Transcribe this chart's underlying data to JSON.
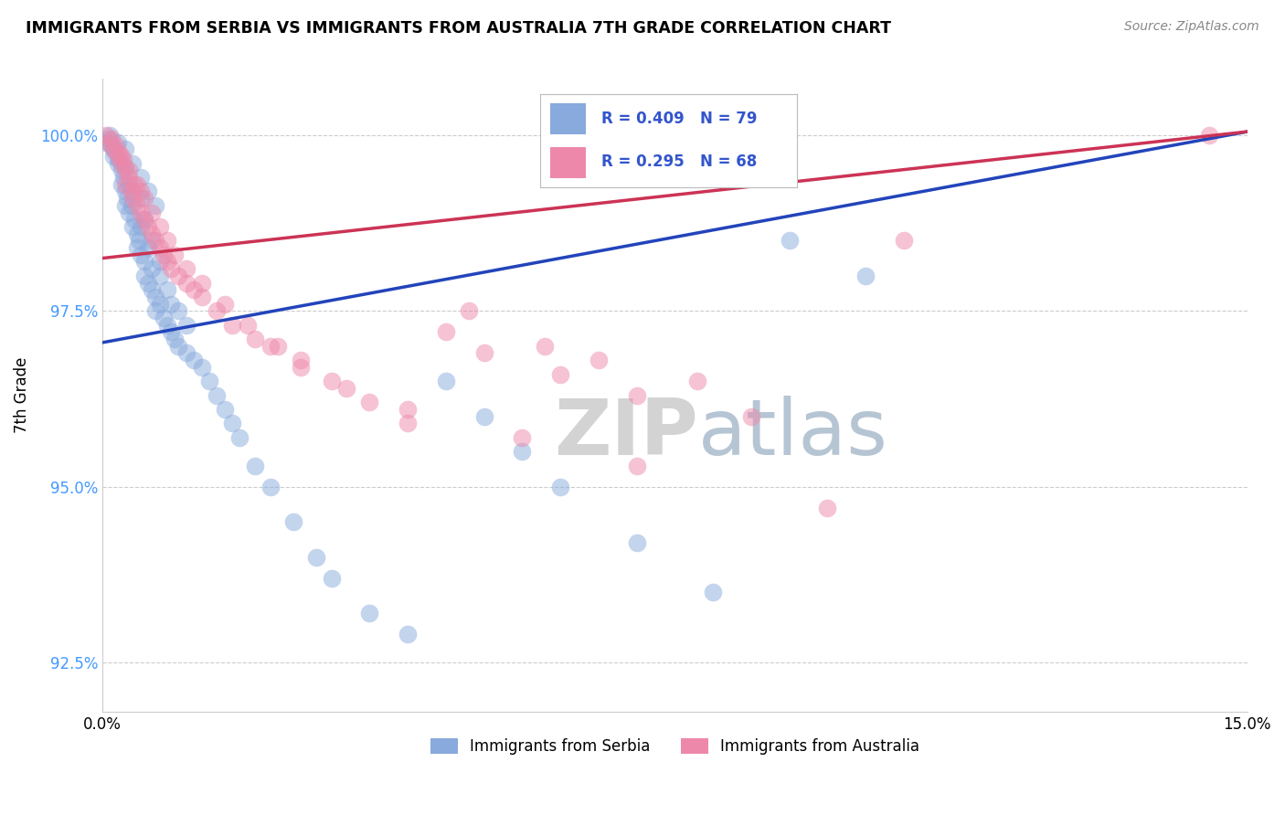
{
  "title": "IMMIGRANTS FROM SERBIA VS IMMIGRANTS FROM AUSTRALIA 7TH GRADE CORRELATION CHART",
  "source": "Source: ZipAtlas.com",
  "ylabel": "7th Grade",
  "legend_label_blue": "Immigrants from Serbia",
  "legend_label_pink": "Immigrants from Australia",
  "r_blue": 0.409,
  "n_blue": 79,
  "r_pink": 0.295,
  "n_pink": 68,
  "color_blue": "#88AADD",
  "color_pink": "#EE88AA",
  "line_color_blue": "#2244BB",
  "line_color_pink": "#CC3355",
  "xmin": 0.0,
  "xmax": 15.0,
  "ymin": 91.8,
  "ymax": 100.8,
  "y_ticks": [
    92.5,
    95.0,
    97.5,
    100.0
  ],
  "y_tick_labels": [
    "92.5%",
    "95.0%",
    "97.5%",
    "100.0%"
  ],
  "watermark_zip": "ZIP",
  "watermark_atlas": "atlas",
  "watermark_color_zip": "#CCCCCC",
  "watermark_color_atlas": "#AABBCC",
  "blue_line_x0": 0.0,
  "blue_line_y0": 97.05,
  "blue_line_x1": 15.0,
  "blue_line_y1": 100.05,
  "pink_line_x0": 0.0,
  "pink_line_y0": 98.25,
  "pink_line_x1": 15.0,
  "pink_line_y1": 100.05,
  "blue_scatter_x": [
    0.05,
    0.08,
    0.1,
    0.12,
    0.15,
    0.15,
    0.18,
    0.2,
    0.2,
    0.22,
    0.25,
    0.25,
    0.28,
    0.3,
    0.3,
    0.3,
    0.32,
    0.35,
    0.35,
    0.38,
    0.4,
    0.4,
    0.42,
    0.45,
    0.45,
    0.48,
    0.5,
    0.5,
    0.5,
    0.55,
    0.55,
    0.6,
    0.6,
    0.65,
    0.65,
    0.7,
    0.7,
    0.75,
    0.75,
    0.8,
    0.85,
    0.85,
    0.9,
    0.9,
    0.95,
    1.0,
    1.0,
    1.1,
    1.1,
    1.2,
    1.3,
    1.4,
    1.5,
    1.6,
    1.7,
    1.8,
    2.0,
    2.2,
    2.5,
    2.8,
    3.0,
    3.5,
    4.0,
    4.5,
    5.0,
    5.5,
    6.0,
    7.0,
    8.0,
    9.0,
    10.0,
    0.3,
    0.4,
    0.5,
    0.6,
    0.7,
    0.55,
    0.65,
    0.75
  ],
  "blue_scatter_y": [
    99.9,
    99.95,
    100.0,
    99.85,
    99.8,
    99.7,
    99.75,
    99.9,
    99.6,
    99.65,
    99.5,
    99.3,
    99.4,
    99.55,
    99.2,
    99.0,
    99.1,
    98.9,
    99.3,
    99.0,
    99.2,
    98.7,
    98.8,
    98.6,
    98.4,
    98.5,
    98.3,
    98.7,
    99.1,
    98.2,
    98.0,
    97.9,
    98.4,
    97.8,
    98.1,
    97.7,
    97.5,
    97.6,
    98.0,
    97.4,
    97.3,
    97.8,
    97.2,
    97.6,
    97.1,
    97.0,
    97.5,
    96.9,
    97.3,
    96.8,
    96.7,
    96.5,
    96.3,
    96.1,
    95.9,
    95.7,
    95.3,
    95.0,
    94.5,
    94.0,
    93.7,
    93.2,
    92.9,
    96.5,
    96.0,
    95.5,
    95.0,
    94.2,
    93.5,
    98.5,
    98.0,
    99.8,
    99.6,
    99.4,
    99.2,
    99.0,
    98.8,
    98.5,
    98.2
  ],
  "pink_scatter_x": [
    0.05,
    0.08,
    0.12,
    0.15,
    0.18,
    0.2,
    0.22,
    0.25,
    0.28,
    0.3,
    0.3,
    0.35,
    0.38,
    0.4,
    0.42,
    0.45,
    0.5,
    0.5,
    0.55,
    0.6,
    0.65,
    0.7,
    0.75,
    0.8,
    0.85,
    0.9,
    1.0,
    1.1,
    1.2,
    1.3,
    1.5,
    1.7,
    2.0,
    2.3,
    2.6,
    3.0,
    3.5,
    4.0,
    4.5,
    5.0,
    6.0,
    7.0,
    8.5,
    10.5,
    14.5,
    0.25,
    0.35,
    0.45,
    0.55,
    0.65,
    0.75,
    0.85,
    0.95,
    1.1,
    1.3,
    1.6,
    1.9,
    2.2,
    2.6,
    3.2,
    4.0,
    5.5,
    7.0,
    4.8,
    5.8,
    6.5,
    7.8,
    9.5
  ],
  "pink_scatter_y": [
    100.0,
    99.9,
    99.95,
    99.8,
    99.85,
    99.7,
    99.75,
    99.6,
    99.65,
    99.5,
    99.3,
    99.4,
    99.2,
    99.1,
    99.3,
    99.0,
    98.9,
    99.2,
    98.8,
    98.7,
    98.6,
    98.5,
    98.4,
    98.3,
    98.2,
    98.1,
    98.0,
    97.9,
    97.8,
    97.7,
    97.5,
    97.3,
    97.1,
    97.0,
    96.8,
    96.5,
    96.2,
    95.9,
    97.2,
    96.9,
    96.6,
    96.3,
    96.0,
    98.5,
    100.0,
    99.7,
    99.5,
    99.3,
    99.1,
    98.9,
    98.7,
    98.5,
    98.3,
    98.1,
    97.9,
    97.6,
    97.3,
    97.0,
    96.7,
    96.4,
    96.1,
    95.7,
    95.3,
    97.5,
    97.0,
    96.8,
    96.5,
    94.7
  ]
}
